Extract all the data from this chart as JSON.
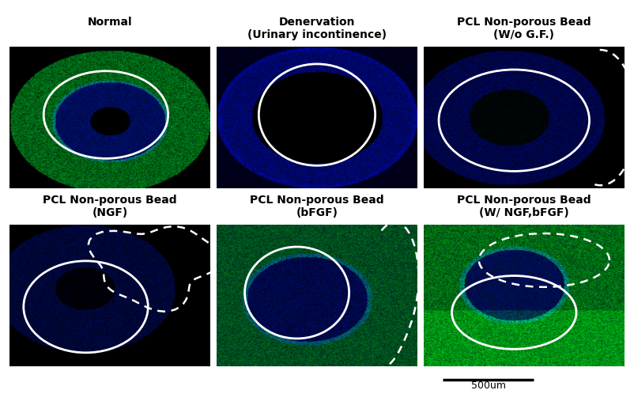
{
  "title_row1": [
    "Normal",
    "Denervation\n(Urinary incontinence)",
    "PCL Non-porous Bead\n(W/o G.F.)"
  ],
  "title_row2": [
    "PCL Non-porous Bead\n(NGF)",
    "PCL Non-porous Bead\n(bFGF)",
    "PCL Non-porous Bead\n(W/ NGF,bFGF)"
  ],
  "scale_bar_text": "500um",
  "background_color": "#ffffff",
  "title_fontsize": 10,
  "title_fontweight": "bold",
  "figsize": [
    8.02,
    5.17
  ],
  "dpi": 100
}
